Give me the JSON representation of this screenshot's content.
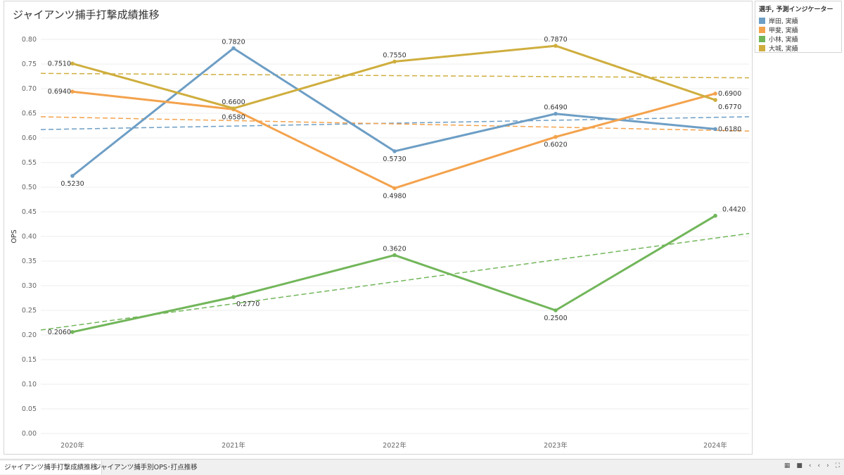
{
  "title": "ジャイアンツ捕手打撃成績推移",
  "legend": {
    "title": "選手, 予測インジケーター",
    "items": [
      {
        "label": "岸田, 実績",
        "color": "#6d9ec5"
      },
      {
        "label": "甲斐, 実績",
        "color": "#f4a24c"
      },
      {
        "label": "小林, 実績",
        "color": "#72b65a"
      },
      {
        "label": "大城, 実績",
        "color": "#cfae3e"
      }
    ]
  },
  "tabs": [
    {
      "label": "ジャイアンツ捕手打撃成績推移",
      "active": true
    },
    {
      "label": "ジャイアンツ捕手別OPS･打点推移",
      "active": false
    }
  ],
  "nav_icons": [
    "grid-view-icon",
    "stop-icon",
    "first-page-icon",
    "previous-page-icon",
    "next-page-icon",
    "fullscreen-icon"
  ],
  "chart_data": {
    "type": "line",
    "ylabel": "OPS",
    "xlabel": "",
    "categories": [
      "2020年",
      "2021年",
      "2022年",
      "2023年",
      "2024年"
    ],
    "ylim": [
      0.0,
      0.8
    ],
    "yticks": [
      "0.00",
      "0.05",
      "0.10",
      "0.15",
      "0.20",
      "0.25",
      "0.30",
      "0.35",
      "0.40",
      "0.45",
      "0.50",
      "0.55",
      "0.60",
      "0.65",
      "0.70",
      "0.75",
      "0.80"
    ],
    "grid": true,
    "legend_position": "right",
    "series": [
      {
        "name": "岸田, 実績",
        "color": "#6d9ec5",
        "values": [
          0.523,
          0.782,
          0.573,
          0.649,
          0.618
        ],
        "labels": [
          "0.5230",
          "0.7820",
          "0.5730",
          "0.6490",
          "0.6180"
        ],
        "label_pos": [
          "below",
          "above",
          "below",
          "above",
          "right"
        ],
        "trend": [
          0.617,
          0.643
        ]
      },
      {
        "name": "甲斐, 実績",
        "color": "#f4a24c",
        "values": [
          0.694,
          0.658,
          0.498,
          0.602,
          0.69
        ],
        "labels": [
          "0.6940",
          "0.6580",
          "0.4980",
          "0.6020",
          "0.6900"
        ],
        "label_pos": [
          "left",
          "below",
          "below",
          "below",
          "right"
        ],
        "trend": [
          0.643,
          0.614
        ]
      },
      {
        "name": "小林, 実績",
        "color": "#72b65a",
        "values": [
          0.206,
          0.277,
          0.362,
          0.25,
          0.442
        ],
        "labels": [
          "0.2060",
          "0.2770",
          "0.3620",
          "0.2500",
          "0.4420"
        ],
        "label_pos": [
          "left",
          "below-right",
          "above",
          "below",
          "above-right"
        ],
        "trend": [
          0.21,
          0.406
        ]
      },
      {
        "name": "大城, 実績",
        "color": "#cfae3e",
        "values": [
          0.751,
          0.66,
          0.755,
          0.787,
          0.677
        ],
        "labels": [
          "0.7510",
          "0.6600",
          "0.7550",
          "0.7870",
          "0.6770"
        ],
        "label_pos": [
          "left",
          "above",
          "above",
          "above",
          "below-right"
        ],
        "trend": [
          0.731,
          0.722
        ]
      }
    ]
  }
}
